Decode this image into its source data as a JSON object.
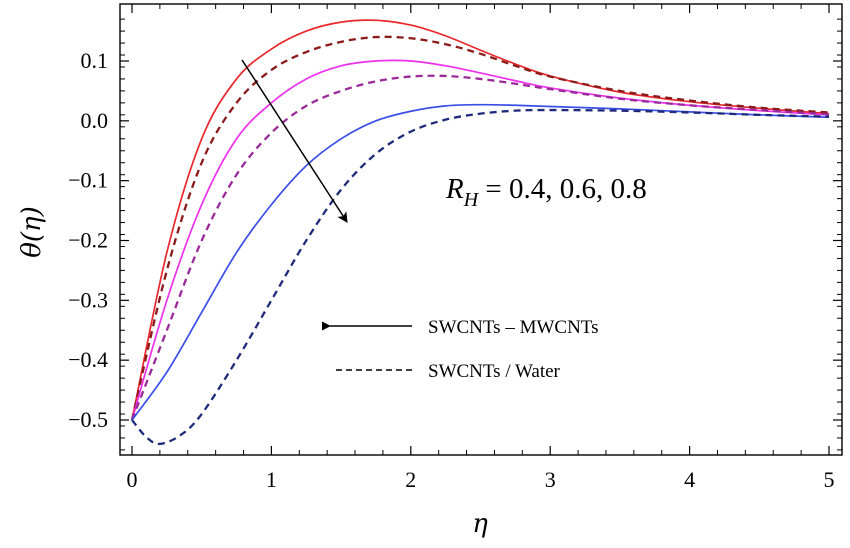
{
  "chart_data": {
    "type": "line",
    "xlabel": "η",
    "ylabel": "θ(η)",
    "xlim": [
      0,
      5
    ],
    "ylim": [
      -0.57,
      0.18
    ],
    "x_ticks": [
      {
        "value": 0,
        "label": "0"
      },
      {
        "value": 1,
        "label": "1"
      },
      {
        "value": 2,
        "label": "2"
      },
      {
        "value": 3,
        "label": "3"
      },
      {
        "value": 4,
        "label": "4"
      },
      {
        "value": 5,
        "label": "5"
      }
    ],
    "y_ticks": [
      {
        "value": 0.1,
        "label": "0.1"
      },
      {
        "value": 0.0,
        "label": "0.0"
      },
      {
        "value": -0.1,
        "label": "-0.1"
      },
      {
        "value": -0.2,
        "label": "-0.2"
      },
      {
        "value": -0.3,
        "label": "-0.3"
      },
      {
        "value": -0.4,
        "label": "-0.4"
      },
      {
        "value": -0.5,
        "label": "-0.5"
      }
    ],
    "grid": false,
    "legend": {
      "position": "center-bottom",
      "entries": [
        {
          "label": "SWCNTs – MWCNTs",
          "style": "solid"
        },
        {
          "label": "SWCNTs / Water",
          "style": "dashed"
        }
      ]
    },
    "annotation": {
      "symbol": "R",
      "subscript": "H",
      "text": " = 0.4, 0.6, 0.8"
    },
    "series": [
      {
        "style": "solid",
        "color": "#e8282d",
        "points": [
          [
            0,
            -0.5
          ],
          [
            0.25,
            -0.22
          ],
          [
            0.5,
            -0.03
          ],
          [
            0.75,
            0.07
          ],
          [
            1,
            0.12
          ],
          [
            1.25,
            0.15
          ],
          [
            1.5,
            0.165
          ],
          [
            1.75,
            0.168
          ],
          [
            2,
            0.16
          ],
          [
            2.25,
            0.142
          ],
          [
            2.5,
            0.118
          ],
          [
            2.75,
            0.095
          ],
          [
            3,
            0.075
          ],
          [
            3.5,
            0.048
          ],
          [
            4,
            0.032
          ],
          [
            4.5,
            0.021
          ],
          [
            5,
            0.012
          ]
        ]
      },
      {
        "style": "dashed",
        "color": "#8b1a1a",
        "points": [
          [
            0,
            -0.5
          ],
          [
            0.25,
            -0.25
          ],
          [
            0.5,
            -0.07
          ],
          [
            0.75,
            0.03
          ],
          [
            1,
            0.085
          ],
          [
            1.25,
            0.115
          ],
          [
            1.5,
            0.132
          ],
          [
            1.75,
            0.14
          ],
          [
            2,
            0.138
          ],
          [
            2.25,
            0.128
          ],
          [
            2.5,
            0.112
          ],
          [
            2.75,
            0.092
          ],
          [
            3,
            0.074
          ],
          [
            3.5,
            0.05
          ],
          [
            4,
            0.034
          ],
          [
            4.5,
            0.022
          ],
          [
            5,
            0.014
          ]
        ]
      },
      {
        "style": "solid",
        "color": "#ee2fee",
        "points": [
          [
            0,
            -0.5
          ],
          [
            0.25,
            -0.3
          ],
          [
            0.5,
            -0.14
          ],
          [
            0.75,
            -0.03
          ],
          [
            1,
            0.03
          ],
          [
            1.25,
            0.07
          ],
          [
            1.5,
            0.092
          ],
          [
            1.75,
            0.1
          ],
          [
            2,
            0.1
          ],
          [
            2.25,
            0.092
          ],
          [
            2.5,
            0.08
          ],
          [
            2.75,
            0.067
          ],
          [
            3,
            0.055
          ],
          [
            3.5,
            0.038
          ],
          [
            4,
            0.026
          ],
          [
            4.5,
            0.017
          ],
          [
            5,
            0.01
          ]
        ]
      },
      {
        "style": "dashed",
        "color": "#9a2a9a",
        "points": [
          [
            0,
            -0.5
          ],
          [
            0.25,
            -0.35
          ],
          [
            0.5,
            -0.2
          ],
          [
            0.75,
            -0.09
          ],
          [
            1,
            -0.02
          ],
          [
            1.25,
            0.025
          ],
          [
            1.5,
            0.05
          ],
          [
            1.75,
            0.066
          ],
          [
            2,
            0.074
          ],
          [
            2.25,
            0.075
          ],
          [
            2.5,
            0.07
          ],
          [
            2.75,
            0.062
          ],
          [
            3,
            0.053
          ],
          [
            3.5,
            0.037
          ],
          [
            4,
            0.026
          ],
          [
            4.5,
            0.018
          ],
          [
            5,
            0.011
          ]
        ]
      },
      {
        "style": "solid",
        "color": "#3a4ee8",
        "points": [
          [
            0,
            -0.5
          ],
          [
            0.25,
            -0.42
          ],
          [
            0.5,
            -0.32
          ],
          [
            0.75,
            -0.22
          ],
          [
            1,
            -0.14
          ],
          [
            1.25,
            -0.075
          ],
          [
            1.5,
            -0.03
          ],
          [
            1.75,
            0.0
          ],
          [
            2,
            0.016
          ],
          [
            2.25,
            0.025
          ],
          [
            2.5,
            0.027
          ],
          [
            2.75,
            0.026
          ],
          [
            3,
            0.024
          ],
          [
            3.5,
            0.02
          ],
          [
            4,
            0.015
          ],
          [
            4.5,
            0.01
          ],
          [
            5,
            0.006
          ]
        ]
      },
      {
        "style": "dashed",
        "color": "#1f2a7a",
        "points": [
          [
            0,
            -0.5
          ],
          [
            0.1,
            -0.528
          ],
          [
            0.2,
            -0.54
          ],
          [
            0.35,
            -0.525
          ],
          [
            0.5,
            -0.49
          ],
          [
            0.75,
            -0.4
          ],
          [
            1,
            -0.3
          ],
          [
            1.25,
            -0.2
          ],
          [
            1.5,
            -0.115
          ],
          [
            1.75,
            -0.055
          ],
          [
            2,
            -0.018
          ],
          [
            2.25,
            0.002
          ],
          [
            2.5,
            0.012
          ],
          [
            2.75,
            0.017
          ],
          [
            3,
            0.018
          ],
          [
            3.5,
            0.017
          ],
          [
            4,
            0.014
          ],
          [
            4.5,
            0.01
          ],
          [
            5,
            0.007
          ]
        ]
      }
    ]
  }
}
